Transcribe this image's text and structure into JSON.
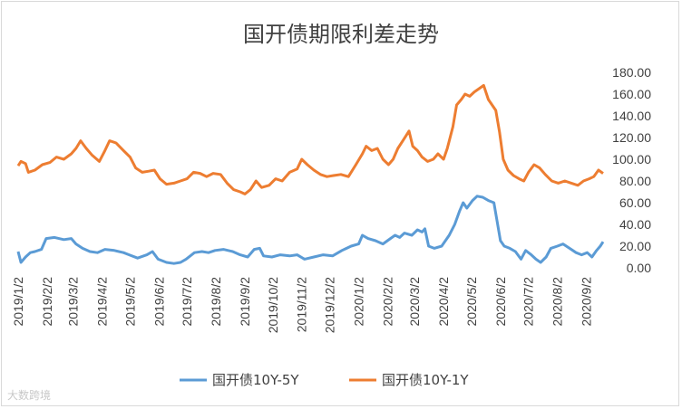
{
  "chart_data": {
    "type": "line",
    "title": "国开债期限利差走势",
    "x": [
      "2019/1/2",
      "2019/2/2",
      "2019/3/2",
      "2019/4/2",
      "2019/5/2",
      "2019/6/2",
      "2019/7/2",
      "2019/8/2",
      "2019/9/2",
      "2019/10/2",
      "2019/11/2",
      "2019/12/2",
      "2020/1/2",
      "2020/2/2",
      "2020/3/2",
      "2020/4/2",
      "2020/5/2",
      "2020/6/2",
      "2020/7/2",
      "2020/8/2",
      "2020/9/2"
    ],
    "x_end": "2020/9/20",
    "yaxis_position": "right",
    "ylim": [
      0,
      180
    ],
    "yticks": [
      "0.00",
      "20.00",
      "40.00",
      "60.00",
      "80.00",
      "100.00",
      "120.00",
      "140.00",
      "160.00",
      "180.00"
    ],
    "grid": false,
    "legend": "bottom",
    "series": [
      {
        "name": "国开债10Y-5Y",
        "color": "#5b9bd5",
        "points": [
          [
            "2019/1/2",
            15
          ],
          [
            "2019/1/5",
            5
          ],
          [
            "2019/1/10",
            10
          ],
          [
            "2019/1/15",
            14
          ],
          [
            "2019/1/20",
            15
          ],
          [
            "2019/1/27",
            17
          ],
          [
            "2019/2/1",
            27
          ],
          [
            "2019/2/10",
            28
          ],
          [
            "2019/2/20",
            26
          ],
          [
            "2019/2/28",
            27
          ],
          [
            "2019/3/5",
            22
          ],
          [
            "2019/3/12",
            18
          ],
          [
            "2019/3/20",
            15
          ],
          [
            "2019/3/28",
            14
          ],
          [
            "2019/4/5",
            17
          ],
          [
            "2019/4/15",
            16
          ],
          [
            "2019/4/25",
            14
          ],
          [
            "2019/5/1",
            12
          ],
          [
            "2019/5/10",
            9
          ],
          [
            "2019/5/20",
            12
          ],
          [
            "2019/5/26",
            15
          ],
          [
            "2019/6/1",
            8
          ],
          [
            "2019/6/10",
            5
          ],
          [
            "2019/6/18",
            4
          ],
          [
            "2019/6/25",
            5
          ],
          [
            "2019/7/1",
            8
          ],
          [
            "2019/7/10",
            14
          ],
          [
            "2019/7/18",
            15
          ],
          [
            "2019/7/25",
            14
          ],
          [
            "2019/8/1",
            16
          ],
          [
            "2019/8/10",
            17
          ],
          [
            "2019/8/20",
            15
          ],
          [
            "2019/8/28",
            12
          ],
          [
            "2019/9/5",
            10
          ],
          [
            "2019/9/12",
            17
          ],
          [
            "2019/9/18",
            18
          ],
          [
            "2019/9/22",
            11
          ],
          [
            "2019/10/1",
            10
          ],
          [
            "2019/10/10",
            12
          ],
          [
            "2019/10/20",
            11
          ],
          [
            "2019/10/28",
            12
          ],
          [
            "2019/11/5",
            8
          ],
          [
            "2019/11/15",
            10
          ],
          [
            "2019/11/25",
            12
          ],
          [
            "2019/12/5",
            11
          ],
          [
            "2019/12/15",
            16
          ],
          [
            "2019/12/25",
            20
          ],
          [
            "2020/1/2",
            22
          ],
          [
            "2020/1/6",
            30
          ],
          [
            "2020/1/12",
            27
          ],
          [
            "2020/1/20",
            25
          ],
          [
            "2020/1/28",
            22
          ],
          [
            "2020/2/5",
            27
          ],
          [
            "2020/2/10",
            30
          ],
          [
            "2020/2/15",
            28
          ],
          [
            "2020/2/20",
            32
          ],
          [
            "2020/2/28",
            30
          ],
          [
            "2020/3/5",
            35
          ],
          [
            "2020/3/10",
            33
          ],
          [
            "2020/3/13",
            36
          ],
          [
            "2020/3/17",
            20
          ],
          [
            "2020/3/23",
            18
          ],
          [
            "2020/3/31",
            20
          ],
          [
            "2020/4/8",
            30
          ],
          [
            "2020/4/14",
            40
          ],
          [
            "2020/4/19",
            52
          ],
          [
            "2020/4/23",
            60
          ],
          [
            "2020/4/27",
            55
          ],
          [
            "2020/5/3",
            62
          ],
          [
            "2020/5/8",
            66
          ],
          [
            "2020/5/14",
            65
          ],
          [
            "2020/5/20",
            62
          ],
          [
            "2020/5/26",
            60
          ],
          [
            "2020/5/29",
            45
          ],
          [
            "2020/6/2",
            25
          ],
          [
            "2020/6/6",
            20
          ],
          [
            "2020/6/12",
            18
          ],
          [
            "2020/6/18",
            15
          ],
          [
            "2020/6/24",
            8
          ],
          [
            "2020/6/29",
            16
          ],
          [
            "2020/7/5",
            12
          ],
          [
            "2020/7/10",
            8
          ],
          [
            "2020/7/15",
            5
          ],
          [
            "2020/7/21",
            10
          ],
          [
            "2020/7/26",
            18
          ],
          [
            "2020/8/2",
            20
          ],
          [
            "2020/8/8",
            22
          ],
          [
            "2020/8/15",
            18
          ],
          [
            "2020/8/22",
            14
          ],
          [
            "2020/8/28",
            12
          ],
          [
            "2020/9/3",
            14
          ],
          [
            "2020/9/8",
            10
          ],
          [
            "2020/9/13",
            16
          ],
          [
            "2020/9/17",
            20
          ],
          [
            "2020/9/20",
            24
          ]
        ]
      },
      {
        "name": "国开债10Y-1Y",
        "color": "#ed7d31",
        "points": [
          [
            "2019/1/2",
            94
          ],
          [
            "2019/1/5",
            98
          ],
          [
            "2019/1/10",
            96
          ],
          [
            "2019/1/13",
            88
          ],
          [
            "2019/1/20",
            90
          ],
          [
            "2019/1/28",
            95
          ],
          [
            "2019/2/5",
            97
          ],
          [
            "2019/2/12",
            102
          ],
          [
            "2019/2/20",
            100
          ],
          [
            "2019/2/28",
            105
          ],
          [
            "2019/3/5",
            110
          ],
          [
            "2019/3/10",
            117
          ],
          [
            "2019/3/16",
            110
          ],
          [
            "2019/3/22",
            104
          ],
          [
            "2019/3/30",
            98
          ],
          [
            "2019/4/5",
            108
          ],
          [
            "2019/4/10",
            117
          ],
          [
            "2019/4/17",
            115
          ],
          [
            "2019/4/25",
            108
          ],
          [
            "2019/5/2",
            102
          ],
          [
            "2019/5/8",
            92
          ],
          [
            "2019/5/15",
            88
          ],
          [
            "2019/5/22",
            89
          ],
          [
            "2019/5/28",
            90
          ],
          [
            "2019/6/3",
            82
          ],
          [
            "2019/6/10",
            77
          ],
          [
            "2019/6/18",
            78
          ],
          [
            "2019/6/25",
            80
          ],
          [
            "2019/7/2",
            82
          ],
          [
            "2019/7/9",
            88
          ],
          [
            "2019/7/16",
            87
          ],
          [
            "2019/7/23",
            84
          ],
          [
            "2019/7/30",
            87
          ],
          [
            "2019/8/7",
            86
          ],
          [
            "2019/8/14",
            78
          ],
          [
            "2019/8/21",
            72
          ],
          [
            "2019/8/28",
            70
          ],
          [
            "2019/9/2",
            68
          ],
          [
            "2019/9/8",
            72
          ],
          [
            "2019/9/14",
            80
          ],
          [
            "2019/9/20",
            74
          ],
          [
            "2019/9/28",
            76
          ],
          [
            "2019/10/5",
            82
          ],
          [
            "2019/10/12",
            80
          ],
          [
            "2019/10/20",
            88
          ],
          [
            "2019/10/28",
            91
          ],
          [
            "2019/11/2",
            100
          ],
          [
            "2019/11/8",
            95
          ],
          [
            "2019/11/15",
            90
          ],
          [
            "2019/11/22",
            86
          ],
          [
            "2019/11/29",
            84
          ],
          [
            "2019/12/6",
            85
          ],
          [
            "2019/12/14",
            86
          ],
          [
            "2019/12/22",
            84
          ],
          [
            "2019/12/30",
            95
          ],
          [
            "2020/1/6",
            105
          ],
          [
            "2020/1/10",
            112
          ],
          [
            "2020/1/16",
            108
          ],
          [
            "2020/1/22",
            110
          ],
          [
            "2020/1/28",
            100
          ],
          [
            "2020/2/3",
            95
          ],
          [
            "2020/2/8",
            100
          ],
          [
            "2020/2/13",
            110
          ],
          [
            "2020/2/19",
            118
          ],
          [
            "2020/2/25",
            126
          ],
          [
            "2020/2/29",
            112
          ],
          [
            "2020/3/5",
            108
          ],
          [
            "2020/3/10",
            102
          ],
          [
            "2020/3/16",
            98
          ],
          [
            "2020/3/22",
            100
          ],
          [
            "2020/3/27",
            105
          ],
          [
            "2020/4/2",
            100
          ],
          [
            "2020/4/6",
            110
          ],
          [
            "2020/4/12",
            130
          ],
          [
            "2020/4/16",
            150
          ],
          [
            "2020/4/21",
            155
          ],
          [
            "2020/4/25",
            160
          ],
          [
            "2020/4/30",
            158
          ],
          [
            "2020/5/5",
            162
          ],
          [
            "2020/5/10",
            165
          ],
          [
            "2020/5/15",
            168
          ],
          [
            "2020/5/20",
            155
          ],
          [
            "2020/5/24",
            150
          ],
          [
            "2020/5/28",
            145
          ],
          [
            "2020/6/1",
            125
          ],
          [
            "2020/6/5",
            100
          ],
          [
            "2020/6/10",
            90
          ],
          [
            "2020/6/16",
            85
          ],
          [
            "2020/6/22",
            82
          ],
          [
            "2020/6/27",
            80
          ],
          [
            "2020/7/2",
            88
          ],
          [
            "2020/7/8",
            95
          ],
          [
            "2020/7/14",
            92
          ],
          [
            "2020/7/20",
            86
          ],
          [
            "2020/7/27",
            80
          ],
          [
            "2020/8/3",
            78
          ],
          [
            "2020/8/10",
            80
          ],
          [
            "2020/8/17",
            78
          ],
          [
            "2020/8/24",
            76
          ],
          [
            "2020/8/30",
            80
          ],
          [
            "2020/9/5",
            82
          ],
          [
            "2020/9/10",
            84
          ],
          [
            "2020/9/15",
            90
          ],
          [
            "2020/9/20",
            87
          ]
        ]
      }
    ]
  },
  "watermark": "大数跨境"
}
